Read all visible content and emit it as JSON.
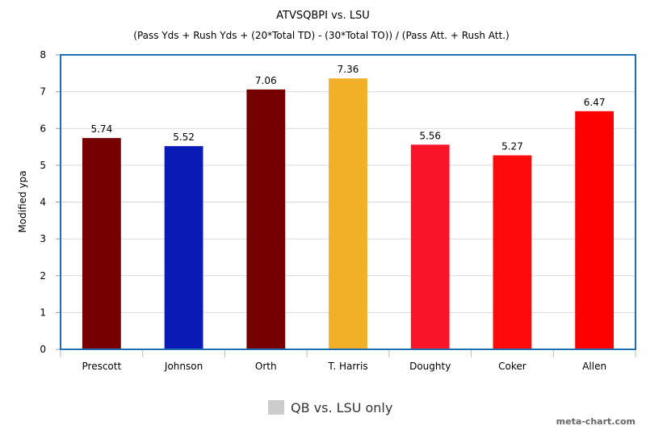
{
  "chart_data": {
    "type": "bar",
    "title": "ATVSQBPI vs. LSU",
    "subtitle": "(Pass Yds + Rush Yds + (20*Total TD) - (30*Total TO)) / (Pass Att. + Rush Att.)",
    "xlabel": "",
    "ylabel": "Modified ypa",
    "ylim": [
      0,
      8
    ],
    "yticks": [
      0,
      1,
      2,
      3,
      4,
      5,
      6,
      7,
      8
    ],
    "grid": true,
    "categories": [
      "Prescott",
      "Johnson",
      "Orth",
      "T. Harris",
      "Doughty",
      "Coker",
      "Allen"
    ],
    "values": [
      5.74,
      5.52,
      7.06,
      7.36,
      5.56,
      5.27,
      6.47
    ],
    "data_labels": [
      "5.74",
      "5.52",
      "7.06",
      "7.36",
      "5.56",
      "5.27",
      "6.47"
    ],
    "bar_colors": [
      "#740000",
      "#0a1bb5",
      "#740000",
      "#f2af28",
      "#f91428",
      "#fd0a0a",
      "#fd0000"
    ],
    "legend": {
      "position": "bottom",
      "entries": [
        {
          "name": "QB vs. LSU only",
          "color": "#cccccc"
        }
      ]
    },
    "watermark": "meta-chart.com"
  }
}
